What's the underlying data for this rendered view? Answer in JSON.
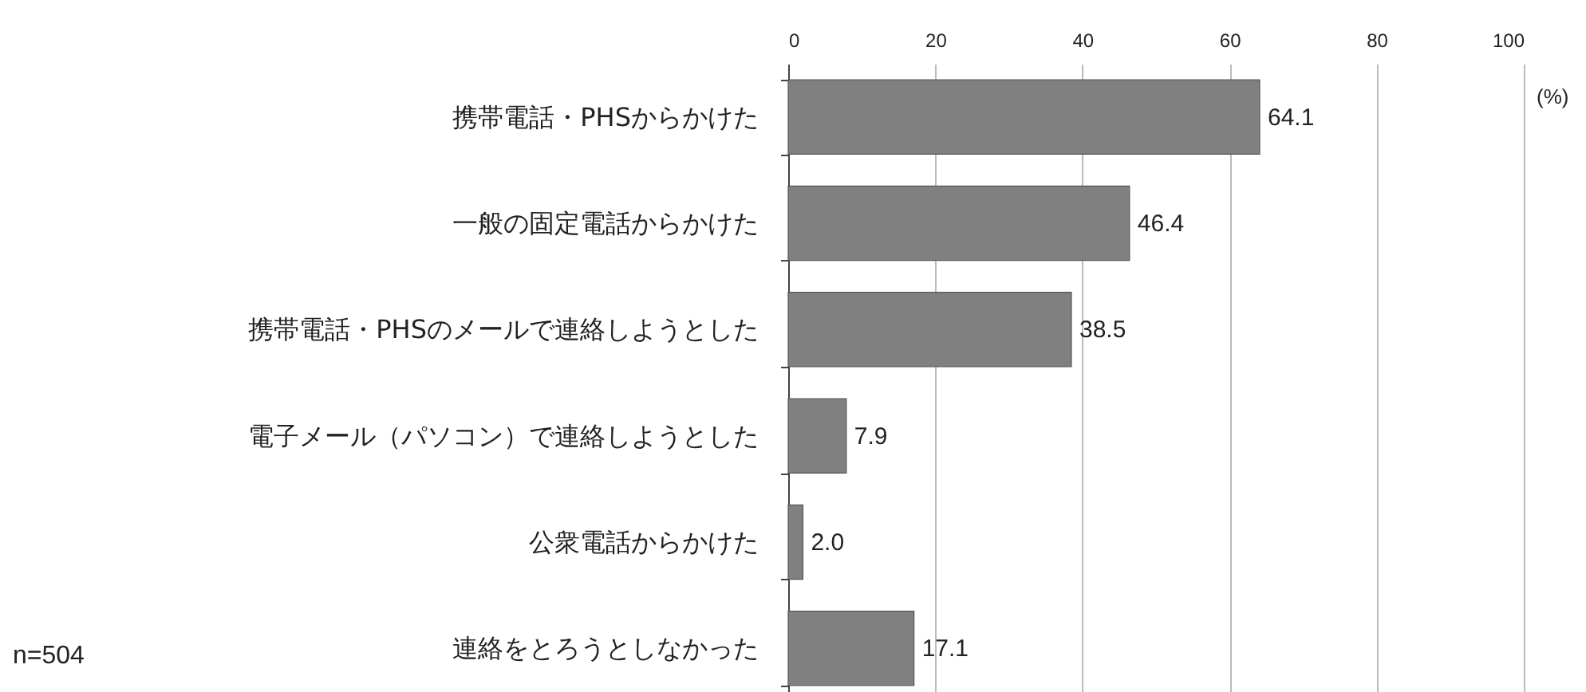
{
  "chart_data": {
    "type": "bar",
    "orientation": "horizontal",
    "categories": [
      "携帯電話・PHSからかけた",
      "一般の固定電話からかけた",
      "携帯電話・PHSのメールで連絡しようとした",
      "電子メール（パソコン）で連絡しようとした",
      "公衆電話からかけた",
      "連絡をとろうとしなかった"
    ],
    "values": [
      64.1,
      46.4,
      38.5,
      7.9,
      2.0,
      17.1
    ],
    "color": "#808080",
    "xlim": [
      0,
      100
    ],
    "xticks": [
      0,
      20,
      40,
      60,
      80,
      100
    ],
    "grid": "x",
    "value_labels": [
      "64.1",
      "46.4",
      "38.5",
      "7.9",
      "2.0",
      "17.1"
    ],
    "annotations": [
      "(%)",
      "n=504"
    ]
  }
}
